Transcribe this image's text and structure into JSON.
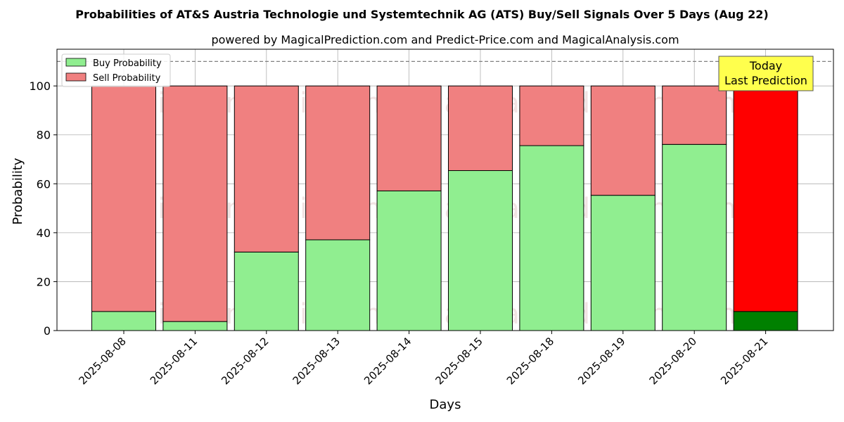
{
  "chart_data": {
    "type": "bar",
    "title": "Probabilities of AT&S Austria Technologie und Systemtechnik AG (ATS) Buy/Sell Signals Over 5 Days (Aug 22)",
    "subtitle": "powered by MagicalPrediction.com and Predict-Price.com and MagicalAnalysis.com",
    "xlabel": "Days",
    "ylabel": "Probability",
    "ylim": [
      0,
      115
    ],
    "yticks": [
      0,
      20,
      40,
      60,
      80,
      100
    ],
    "categories": [
      "2025-08-08",
      "2025-08-11",
      "2025-08-12",
      "2025-08-13",
      "2025-08-14",
      "2025-08-15",
      "2025-08-18",
      "2025-08-19",
      "2025-08-20",
      "2025-08-21"
    ],
    "series": [
      {
        "name": "Buy Probability",
        "values": [
          7.8,
          3.7,
          32.1,
          37.1,
          57.1,
          65.4,
          75.6,
          55.3,
          76.1,
          7.8
        ]
      },
      {
        "name": "Sell Probability",
        "values": [
          92.2,
          96.3,
          67.9,
          62.9,
          42.9,
          34.6,
          24.4,
          44.7,
          23.9,
          92.2
        ]
      }
    ],
    "reference_line": 110,
    "grid": true,
    "legend_position": "top-left",
    "colors": {
      "buy": "#90ee90",
      "sell": "#f08080",
      "buy_highlight": "#008000",
      "sell_highlight": "#ff0000",
      "annotation_bg": "#ffff4d"
    },
    "annotation": {
      "line1": "Today",
      "line2": "Last Prediction"
    },
    "watermarks": [
      "MagicalAnalysis.com",
      "MagicalPrediction.com"
    ]
  }
}
